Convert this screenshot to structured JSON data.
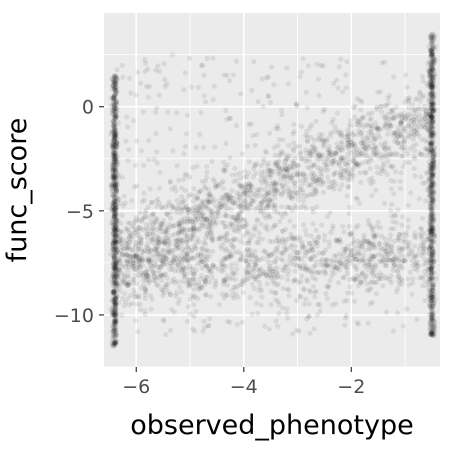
{
  "chart_data": {
    "type": "scatter",
    "xlabel": "observed_phenotype",
    "ylabel": "func_score",
    "xlim": [
      -6.6,
      -0.35
    ],
    "ylim": [
      -12.5,
      4.5
    ],
    "x_ticks": [
      -6,
      -4,
      -2
    ],
    "y_ticks": [
      0,
      -5,
      -10
    ],
    "x_tick_labels": [
      "−6",
      "−4",
      "−2"
    ],
    "y_tick_labels": [
      "0",
      "−5",
      "−10"
    ],
    "grid": true,
    "panel_color": "#ebebeb",
    "grid_color": "#ffffff",
    "point_color": "#000000",
    "point_alpha": 0.08,
    "structure": {
      "left_edge_column": {
        "x": -6.4,
        "y_range": [
          -11.5,
          1.5
        ]
      },
      "right_edge_column": {
        "x": -0.5,
        "y_range": [
          -11,
          3.5
        ]
      },
      "upper_band": {
        "x_from": -6.4,
        "y_from": -7.0,
        "x_to": -0.5,
        "y_to": -0.5
      },
      "lower_band": {
        "x_from": -6.4,
        "y_from": -8.0,
        "x_to": -0.5,
        "y_to": -7.0
      }
    }
  }
}
